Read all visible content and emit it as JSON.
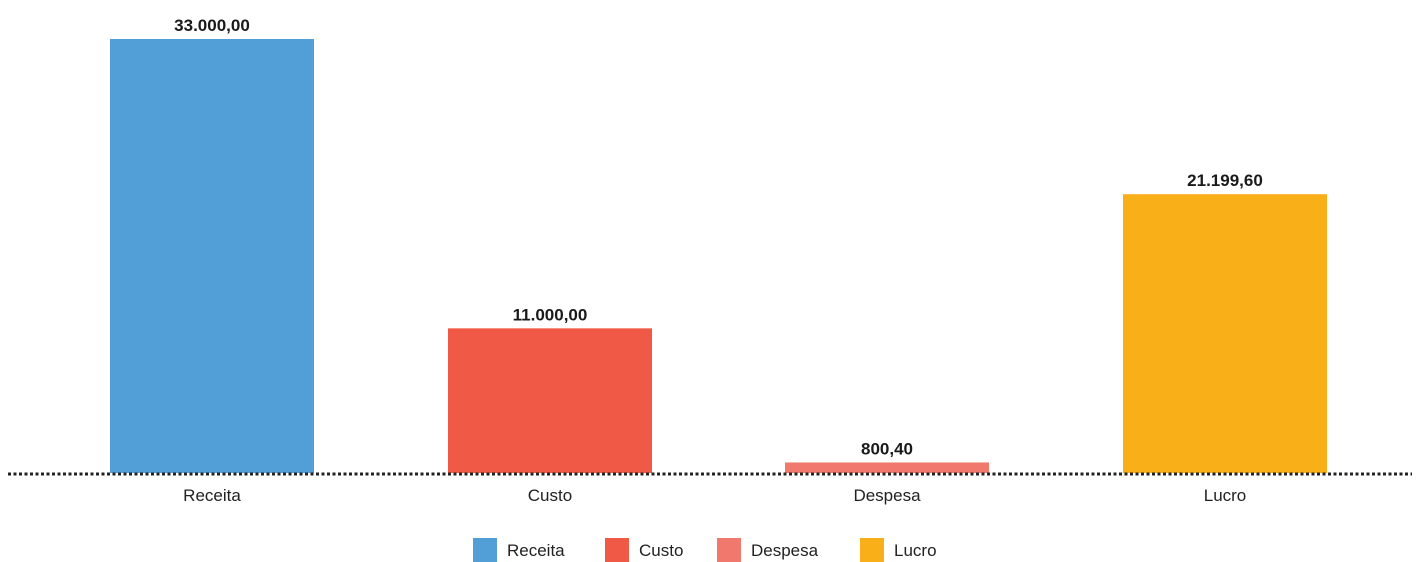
{
  "chart_data": {
    "type": "bar",
    "title": "",
    "xlabel": "",
    "ylabel": "",
    "categories": [
      "Receita",
      "Custo",
      "Despesa",
      "Lucro"
    ],
    "values": [
      33000.0,
      11000.0,
      800.4,
      21199.6
    ],
    "data_labels": [
      "33.000,00",
      "11.000,00",
      "800,40",
      "21.199,60"
    ],
    "colors": [
      "#529FD8",
      "#F05945",
      "#F1786C",
      "#F9AF18"
    ],
    "ylim": [
      0,
      33000
    ],
    "grid": false,
    "baseline_style": "dotted",
    "legend": {
      "position": "bottom",
      "entries": [
        "Receita",
        "Custo",
        "Despesa",
        "Lucro"
      ]
    }
  }
}
